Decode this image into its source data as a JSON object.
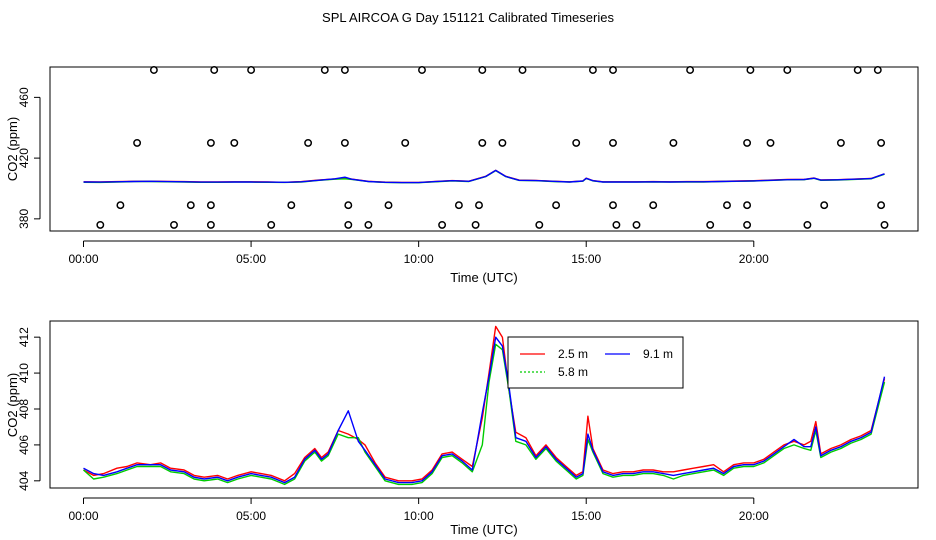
{
  "title": "SPL AIRCOA G  Day 151121  Calibrated Timeseries",
  "chart_data": [
    {
      "type": "line",
      "panel": "top",
      "xlabel": "Time (UTC)",
      "ylabel": "CO2 (ppm)",
      "x_ticks": [
        0,
        5,
        10,
        15,
        20
      ],
      "x_tick_labels": [
        "00:00",
        "05:00",
        "10:00",
        "15:00",
        "20:00"
      ],
      "xlim": [
        -1,
        24.9
      ],
      "y_ticks": [
        380,
        420,
        460
      ],
      "y_tick_labels": [
        "380",
        "420",
        "460"
      ],
      "ylim": [
        372,
        480
      ],
      "x": [
        0.0,
        0.5,
        1.0,
        1.5,
        2.0,
        2.5,
        3.0,
        3.5,
        4.0,
        4.5,
        5.0,
        5.5,
        6.0,
        6.5,
        7.0,
        7.5,
        7.8,
        8.0,
        8.5,
        9.0,
        9.5,
        10.0,
        10.5,
        11.0,
        11.5,
        12.0,
        12.3,
        12.6,
        13.0,
        13.5,
        14.0,
        14.5,
        14.9,
        15.0,
        15.2,
        15.5,
        16.0,
        16.5,
        17.0,
        17.5,
        18.0,
        18.5,
        19.0,
        19.5,
        20.0,
        20.5,
        21.0,
        21.5,
        21.8,
        22.0,
        22.5,
        23.0,
        23.5,
        23.9
      ],
      "series": [
        {
          "name": "2.5 m",
          "color": "#ff0000",
          "values": [
            404.4,
            404.3,
            404.5,
            404.7,
            404.8,
            404.6,
            404.5,
            404.3,
            404.3,
            404.4,
            404.4,
            404.3,
            404.1,
            404.5,
            405.5,
            406.3,
            406.6,
            406.2,
            404.7,
            404.2,
            404.0,
            404.0,
            404.6,
            405.2,
            404.8,
            408.0,
            412.0,
            408.0,
            405.5,
            405.3,
            404.8,
            404.4,
            405.0,
            406.8,
            405.2,
            404.4,
            404.4,
            404.4,
            404.5,
            404.4,
            404.5,
            404.5,
            404.7,
            404.9,
            405.1,
            405.5,
            405.9,
            406.0,
            406.9,
            405.6,
            405.8,
            406.2,
            406.6,
            409.6
          ]
        },
        {
          "name": "5.8 m",
          "color": "#00cc00",
          "values": [
            404.1,
            404.0,
            404.3,
            404.5,
            404.6,
            404.4,
            404.3,
            404.1,
            404.1,
            404.2,
            404.2,
            404.1,
            404.0,
            404.3,
            405.3,
            406.1,
            406.4,
            406.0,
            404.5,
            404.0,
            403.8,
            403.8,
            404.4,
            405.0,
            404.6,
            407.8,
            411.8,
            407.8,
            405.3,
            405.1,
            404.6,
            404.2,
            404.8,
            406.6,
            405.0,
            404.2,
            404.2,
            404.2,
            404.3,
            404.2,
            404.3,
            404.3,
            404.5,
            404.7,
            404.9,
            405.3,
            405.7,
            405.8,
            406.7,
            405.4,
            405.6,
            406.0,
            406.4,
            409.4
          ]
        },
        {
          "name": "9.1 m",
          "color": "#0000ff",
          "values": [
            404.3,
            404.2,
            404.4,
            404.6,
            404.7,
            404.5,
            404.4,
            404.2,
            404.2,
            404.3,
            404.3,
            404.2,
            404.1,
            404.4,
            405.4,
            406.4,
            407.4,
            406.1,
            404.6,
            404.1,
            403.9,
            403.9,
            404.5,
            405.1,
            404.7,
            407.9,
            411.9,
            407.9,
            405.4,
            405.2,
            404.7,
            404.3,
            404.9,
            406.7,
            405.1,
            404.3,
            404.3,
            404.3,
            404.4,
            404.3,
            404.4,
            404.4,
            404.6,
            404.8,
            405.0,
            405.4,
            405.8,
            405.9,
            406.8,
            405.5,
            405.7,
            406.1,
            406.5,
            409.7
          ]
        }
      ],
      "markers": {
        "symbol": "open-circle",
        "rows": [
          {
            "y": 478,
            "x": [
              2.1,
              3.9,
              5.0,
              7.2,
              7.8,
              10.1,
              11.9,
              13.1,
              15.2,
              15.8,
              18.1,
              19.9,
              21.0,
              23.1,
              23.7
            ]
          },
          {
            "y": 430,
            "x": [
              1.6,
              3.8,
              4.5,
              6.7,
              7.8,
              9.6,
              11.9,
              12.5,
              14.7,
              15.8,
              17.6,
              19.8,
              20.5,
              22.6,
              23.8
            ]
          },
          {
            "y": 389,
            "x": [
              1.1,
              3.2,
              3.8,
              6.2,
              7.9,
              9.1,
              11.2,
              11.8,
              14.1,
              15.8,
              17.0,
              19.2,
              19.8,
              22.1,
              23.8
            ]
          },
          {
            "y": 376,
            "x": [
              0.5,
              2.7,
              3.8,
              5.6,
              7.9,
              8.5,
              10.7,
              11.7,
              13.6,
              15.9,
              16.5,
              18.7,
              19.8,
              21.6,
              23.9
            ]
          }
        ]
      }
    },
    {
      "type": "line",
      "panel": "bottom",
      "xlabel": "Time (UTC)",
      "ylabel": "CO2 (ppm)",
      "x_ticks": [
        0,
        5,
        10,
        15,
        20
      ],
      "x_tick_labels": [
        "00:00",
        "05:00",
        "10:00",
        "15:00",
        "20:00"
      ],
      "xlim": [
        -1,
        24.9
      ],
      "y_ticks": [
        404,
        406,
        408,
        410,
        412
      ],
      "y_tick_labels": [
        "404",
        "406",
        "408",
        "410",
        "412"
      ],
      "ylim": [
        403.6,
        412.9
      ],
      "legend": {
        "position": "top-center",
        "entries": [
          "2.5 m",
          "9.1 m",
          "5.8 m"
        ]
      },
      "x": [
        0.0,
        0.3,
        0.6,
        1.0,
        1.3,
        1.6,
        2.0,
        2.3,
        2.6,
        3.0,
        3.3,
        3.6,
        4.0,
        4.3,
        4.6,
        5.0,
        5.3,
        5.6,
        6.0,
        6.3,
        6.6,
        6.9,
        7.1,
        7.3,
        7.6,
        7.9,
        8.2,
        8.4,
        8.7,
        9.0,
        9.4,
        9.8,
        10.1,
        10.4,
        10.7,
        11.0,
        11.3,
        11.6,
        11.9,
        12.1,
        12.3,
        12.5,
        12.7,
        12.9,
        13.2,
        13.5,
        13.8,
        14.1,
        14.4,
        14.7,
        14.9,
        15.05,
        15.2,
        15.5,
        15.8,
        16.1,
        16.4,
        16.7,
        17.0,
        17.3,
        17.6,
        17.9,
        18.2,
        18.5,
        18.8,
        19.1,
        19.4,
        19.7,
        20.0,
        20.3,
        20.6,
        20.9,
        21.2,
        21.5,
        21.7,
        21.85,
        22.0,
        22.3,
        22.6,
        22.9,
        23.2,
        23.5,
        23.9
      ],
      "series": [
        {
          "name": "2.5 m",
          "color": "#ff0000",
          "values": [
            404.6,
            404.3,
            404.4,
            404.7,
            404.8,
            405.0,
            404.9,
            405.0,
            404.7,
            404.6,
            404.3,
            404.2,
            404.3,
            404.1,
            404.3,
            404.5,
            404.4,
            404.3,
            404.0,
            404.4,
            405.3,
            405.8,
            405.3,
            405.6,
            406.8,
            406.6,
            406.3,
            406.0,
            405.0,
            404.2,
            404.0,
            404.0,
            404.1,
            404.6,
            405.5,
            405.6,
            405.2,
            404.8,
            407.5,
            410.0,
            412.6,
            412.0,
            409.0,
            406.7,
            406.4,
            405.4,
            406.0,
            405.3,
            404.8,
            404.3,
            404.5,
            407.6,
            405.8,
            404.6,
            404.4,
            404.5,
            404.5,
            404.6,
            404.6,
            404.5,
            404.5,
            404.6,
            404.7,
            404.8,
            404.9,
            404.5,
            404.9,
            405.0,
            405.0,
            405.2,
            405.6,
            406.0,
            406.2,
            406.0,
            406.2,
            407.3,
            405.5,
            405.8,
            406.0,
            406.3,
            406.5,
            406.8,
            409.7
          ]
        },
        {
          "name": "5.8 m",
          "color": "#00cc00",
          "values": [
            404.6,
            404.1,
            404.2,
            404.4,
            404.6,
            404.8,
            404.8,
            404.8,
            404.5,
            404.4,
            404.1,
            404.0,
            404.1,
            403.9,
            404.1,
            404.3,
            404.2,
            404.1,
            403.8,
            404.1,
            405.1,
            405.6,
            405.1,
            405.4,
            406.6,
            406.4,
            406.4,
            405.6,
            404.8,
            404.0,
            403.8,
            403.8,
            403.9,
            404.4,
            405.3,
            405.4,
            405.0,
            404.5,
            406.0,
            409.5,
            411.6,
            411.3,
            409.0,
            406.2,
            406.0,
            405.2,
            405.8,
            405.1,
            404.6,
            404.1,
            404.3,
            406.3,
            405.6,
            404.4,
            404.2,
            404.3,
            404.3,
            404.4,
            404.4,
            404.3,
            404.1,
            404.3,
            404.4,
            404.5,
            404.6,
            404.3,
            404.7,
            404.8,
            404.8,
            405.0,
            405.4,
            405.8,
            406.0,
            405.8,
            405.7,
            406.8,
            405.3,
            405.6,
            405.8,
            406.1,
            406.3,
            406.6,
            409.5
          ]
        },
        {
          "name": "9.1 m",
          "color": "#0000ff",
          "values": [
            404.7,
            404.4,
            404.3,
            404.5,
            404.7,
            404.9,
            404.9,
            404.9,
            404.6,
            404.5,
            404.2,
            404.1,
            404.2,
            404.0,
            404.2,
            404.4,
            404.3,
            404.2,
            403.9,
            404.2,
            405.2,
            405.7,
            405.2,
            405.5,
            406.8,
            407.9,
            406.2,
            405.7,
            404.9,
            404.1,
            403.9,
            403.9,
            404.0,
            404.5,
            405.4,
            405.5,
            405.1,
            404.6,
            407.8,
            409.8,
            412.0,
            411.5,
            409.2,
            406.4,
            406.2,
            405.3,
            405.9,
            405.2,
            404.7,
            404.2,
            404.4,
            406.6,
            405.7,
            404.5,
            404.3,
            404.4,
            404.4,
            404.5,
            404.5,
            404.4,
            404.3,
            404.4,
            404.5,
            404.6,
            404.7,
            404.4,
            404.8,
            404.9,
            404.9,
            405.1,
            405.5,
            405.9,
            406.3,
            405.9,
            405.9,
            407.0,
            405.4,
            405.7,
            405.9,
            406.2,
            406.4,
            406.7,
            409.8
          ]
        }
      ]
    }
  ]
}
